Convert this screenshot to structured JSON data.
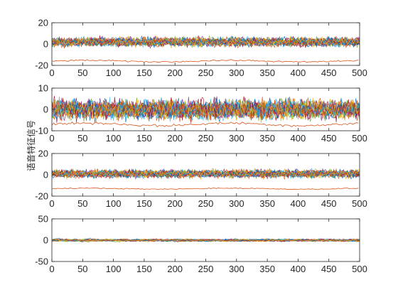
{
  "chart_data": {
    "type": "line",
    "ylabel": "语音特征信号",
    "panels": [
      {
        "xlim": [
          0,
          500
        ],
        "ylim": [
          -20,
          20
        ],
        "xticks": [
          0,
          50,
          100,
          150,
          200,
          250,
          300,
          350,
          400,
          450,
          500
        ],
        "yticks": [
          -20,
          0,
          20
        ],
        "series_count": 24,
        "center": 2,
        "spread": 3.0,
        "offset_series": {
          "level": -16,
          "amplitude": 1.2
        }
      },
      {
        "xlim": [
          0,
          500
        ],
        "ylim": [
          -10,
          10
        ],
        "xticks": [
          0,
          50,
          100,
          150,
          200,
          250,
          300,
          350,
          400,
          450,
          500
        ],
        "yticks": [
          -10,
          0,
          10
        ],
        "series_count": 24,
        "center": 0,
        "spread": 3.2,
        "offset_series": {
          "level": -7,
          "amplitude": 1.0
        }
      },
      {
        "xlim": [
          0,
          500
        ],
        "ylim": [
          -20,
          20
        ],
        "xticks": [
          0,
          50,
          100,
          150,
          200,
          250,
          300,
          350,
          400,
          450,
          500
        ],
        "yticks": [
          -20,
          0,
          20
        ],
        "series_count": 24,
        "center": 1,
        "spread": 2.6,
        "offset_series": {
          "level": -13,
          "amplitude": 0.8
        }
      },
      {
        "xlim": [
          0,
          500
        ],
        "ylim": [
          -50,
          50
        ],
        "xticks": [
          0,
          50,
          100,
          150,
          200,
          250,
          300,
          350,
          400,
          450,
          500
        ],
        "yticks": [
          -50,
          0,
          50
        ],
        "series_count": 24,
        "center": 0,
        "spread": 4.0,
        "offset_series": null
      }
    ],
    "colors": [
      "#0072BD",
      "#D95319",
      "#EDB120",
      "#7E2F8E",
      "#77AC30",
      "#4DBEEE",
      "#A2142F"
    ],
    "grid": false
  }
}
